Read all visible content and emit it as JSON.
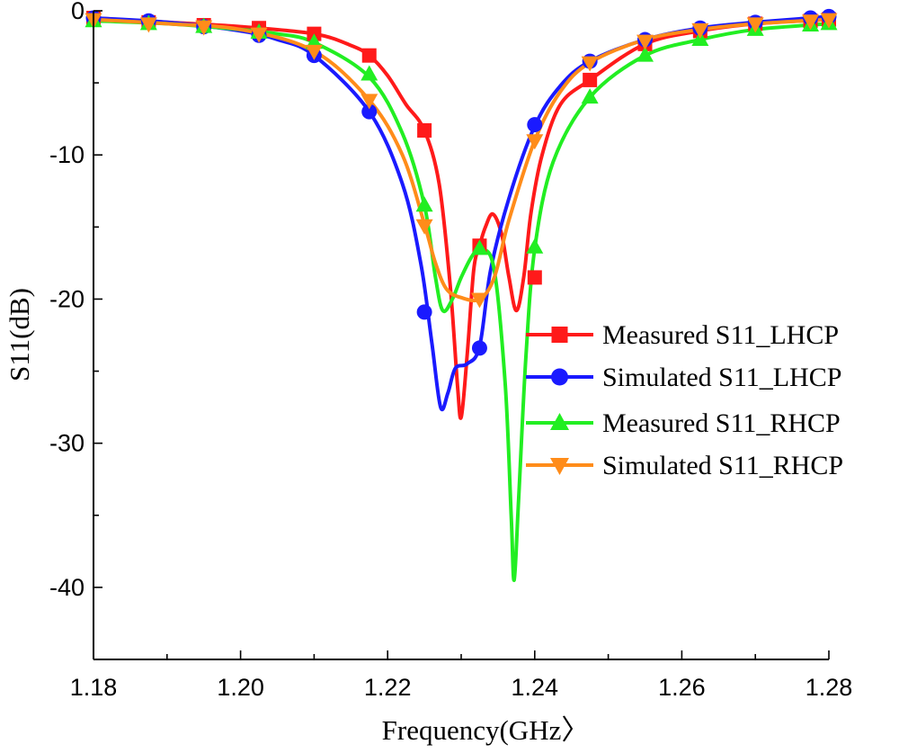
{
  "chart_data": {
    "type": "line",
    "title": "",
    "xlabel": "Frequency(GHz〉",
    "ylabel": "S11(dB)",
    "xlim": [
      1.18,
      1.28
    ],
    "ylim": [
      -45,
      0
    ],
    "xticks": [
      1.18,
      1.2,
      1.22,
      1.24,
      1.26,
      1.28
    ],
    "xtick_labels": [
      "1.18",
      "1.20",
      "1.22",
      "1.24",
      "1.26",
      "1.28"
    ],
    "yticks": [
      0,
      -10,
      -20,
      -30,
      -40
    ],
    "ytick_labels": [
      "0",
      "-10",
      "-20",
      "-30",
      "-40"
    ],
    "legend_position": "right",
    "series": [
      {
        "name": "Measured S11_LHCP",
        "color": "#ff1a1a",
        "marker": "square",
        "curve": [
          [
            1.18,
            -0.5
          ],
          [
            1.19,
            -0.8
          ],
          [
            1.2,
            -1.1
          ],
          [
            1.21,
            -1.6
          ],
          [
            1.215,
            -2.4
          ],
          [
            1.2175,
            -3.1
          ],
          [
            1.22,
            -4.5
          ],
          [
            1.2225,
            -6.5
          ],
          [
            1.225,
            -8.3
          ],
          [
            1.227,
            -12
          ],
          [
            1.2285,
            -19
          ],
          [
            1.2295,
            -26
          ],
          [
            1.23,
            -28.2
          ],
          [
            1.2308,
            -24
          ],
          [
            1.2317,
            -18
          ],
          [
            1.2325,
            -16.3
          ],
          [
            1.2333,
            -15
          ],
          [
            1.2343,
            -14.1
          ],
          [
            1.2355,
            -15.5
          ],
          [
            1.2365,
            -18.5
          ],
          [
            1.2375,
            -20.8
          ],
          [
            1.2385,
            -18.5
          ],
          [
            1.2395,
            -14
          ],
          [
            1.241,
            -10
          ],
          [
            1.2435,
            -6.5
          ],
          [
            1.2475,
            -4.8
          ],
          [
            1.255,
            -2.3
          ],
          [
            1.2625,
            -1.4
          ],
          [
            1.27,
            -0.9
          ],
          [
            1.28,
            -0.6
          ]
        ],
        "markers": [
          [
            1.18,
            -0.5
          ],
          [
            1.1875,
            -0.8
          ],
          [
            1.195,
            -1.0
          ],
          [
            1.2025,
            -1.2
          ],
          [
            1.21,
            -1.6
          ],
          [
            1.2175,
            -3.1
          ],
          [
            1.225,
            -8.3
          ],
          [
            1.2325,
            -16.3
          ],
          [
            1.24,
            -18.5
          ],
          [
            1.2475,
            -4.8
          ],
          [
            1.255,
            -2.3
          ],
          [
            1.2625,
            -1.4
          ],
          [
            1.27,
            -0.9
          ],
          [
            1.2775,
            -0.7
          ],
          [
            1.28,
            -0.6
          ]
        ]
      },
      {
        "name": "Simulated S11_LHCP",
        "color": "#1a1aff",
        "marker": "circle",
        "curve": [
          [
            1.18,
            -0.5
          ],
          [
            1.19,
            -0.8
          ],
          [
            1.2,
            -1.4
          ],
          [
            1.205,
            -2
          ],
          [
            1.21,
            -3.1
          ],
          [
            1.2175,
            -7
          ],
          [
            1.222,
            -12
          ],
          [
            1.2245,
            -17.5
          ],
          [
            1.226,
            -23
          ],
          [
            1.2272,
            -27.5
          ],
          [
            1.2282,
            -26.5
          ],
          [
            1.2292,
            -24.8
          ],
          [
            1.2308,
            -24.5
          ],
          [
            1.2325,
            -23.3
          ],
          [
            1.234,
            -18
          ],
          [
            1.2365,
            -13
          ],
          [
            1.24,
            -8
          ],
          [
            1.2435,
            -5.2
          ],
          [
            1.2475,
            -3.5
          ],
          [
            1.255,
            -2
          ],
          [
            1.2625,
            -1.2
          ],
          [
            1.27,
            -0.8
          ],
          [
            1.28,
            -0.4
          ]
        ],
        "markers": [
          [
            1.18,
            -0.5
          ],
          [
            1.1875,
            -0.7
          ],
          [
            1.195,
            -1.1
          ],
          [
            1.2025,
            -1.7
          ],
          [
            1.21,
            -3.1
          ],
          [
            1.2175,
            -7.0
          ],
          [
            1.225,
            -20.9
          ],
          [
            1.2325,
            -23.4
          ],
          [
            1.24,
            -7.9
          ],
          [
            1.2475,
            -3.5
          ],
          [
            1.255,
            -2.0
          ],
          [
            1.2625,
            -1.2
          ],
          [
            1.27,
            -0.8
          ],
          [
            1.2775,
            -0.5
          ],
          [
            1.28,
            -0.4
          ]
        ]
      },
      {
        "name": "Measured S11_RHCP",
        "color": "#22ee22",
        "marker": "triangle-up",
        "curve": [
          [
            1.18,
            -0.7
          ],
          [
            1.19,
            -0.9
          ],
          [
            1.2,
            -1.3
          ],
          [
            1.205,
            -1.6
          ],
          [
            1.21,
            -2.2
          ],
          [
            1.2175,
            -4.6
          ],
          [
            1.222,
            -8.5
          ],
          [
            1.225,
            -13.5
          ],
          [
            1.2265,
            -18.5
          ],
          [
            1.2275,
            -20.8
          ],
          [
            1.2288,
            -20
          ],
          [
            1.23,
            -18.5
          ],
          [
            1.2315,
            -17
          ],
          [
            1.2328,
            -16.5
          ],
          [
            1.2345,
            -18
          ],
          [
            1.236,
            -26
          ],
          [
            1.2368,
            -35
          ],
          [
            1.2372,
            -39.5
          ],
          [
            1.2378,
            -34
          ],
          [
            1.2388,
            -24
          ],
          [
            1.24,
            -16.5
          ],
          [
            1.2425,
            -10.5
          ],
          [
            1.2475,
            -6
          ],
          [
            1.255,
            -3.1
          ],
          [
            1.2625,
            -2
          ],
          [
            1.27,
            -1.3
          ],
          [
            1.28,
            -0.9
          ]
        ],
        "markers": [
          [
            1.18,
            -0.7
          ],
          [
            1.1875,
            -0.9
          ],
          [
            1.195,
            -1.1
          ],
          [
            1.2025,
            -1.5
          ],
          [
            1.21,
            -2.2
          ],
          [
            1.2175,
            -4.4
          ],
          [
            1.225,
            -13.5
          ],
          [
            1.2325,
            -16.5
          ],
          [
            1.24,
            -16.4
          ],
          [
            1.2475,
            -6.0
          ],
          [
            1.255,
            -3.1
          ],
          [
            1.2625,
            -2.0
          ],
          [
            1.27,
            -1.3
          ],
          [
            1.2775,
            -1.0
          ],
          [
            1.28,
            -0.9
          ]
        ]
      },
      {
        "name": "Simulated S11_RHCP",
        "color": "#ff8c1a",
        "marker": "triangle-down",
        "curve": [
          [
            1.18,
            -0.6
          ],
          [
            1.19,
            -0.9
          ],
          [
            1.2,
            -1.3
          ],
          [
            1.21,
            -2.8
          ],
          [
            1.2175,
            -6.2
          ],
          [
            1.222,
            -10
          ],
          [
            1.225,
            -14.8
          ],
          [
            1.2265,
            -17.5
          ],
          [
            1.228,
            -19.3
          ],
          [
            1.23,
            -19.9
          ],
          [
            1.2325,
            -20
          ],
          [
            1.2345,
            -18.5
          ],
          [
            1.2365,
            -14.5
          ],
          [
            1.24,
            -9
          ],
          [
            1.2435,
            -5.6
          ],
          [
            1.2475,
            -3.6
          ],
          [
            1.255,
            -2
          ],
          [
            1.2625,
            -1.3
          ],
          [
            1.27,
            -0.9
          ],
          [
            1.28,
            -0.6
          ]
        ],
        "markers": [
          [
            1.18,
            -0.6
          ],
          [
            1.1875,
            -0.9
          ],
          [
            1.195,
            -1.1
          ],
          [
            1.2025,
            -1.6
          ],
          [
            1.21,
            -2.8
          ],
          [
            1.2175,
            -6.2
          ],
          [
            1.225,
            -14.9
          ],
          [
            1.2325,
            -20.0
          ],
          [
            1.24,
            -9.0
          ],
          [
            1.2475,
            -3.6
          ],
          [
            1.255,
            -2.1
          ],
          [
            1.2625,
            -1.3
          ],
          [
            1.27,
            -0.9
          ],
          [
            1.2775,
            -0.7
          ],
          [
            1.28,
            -0.6
          ]
        ]
      }
    ]
  }
}
